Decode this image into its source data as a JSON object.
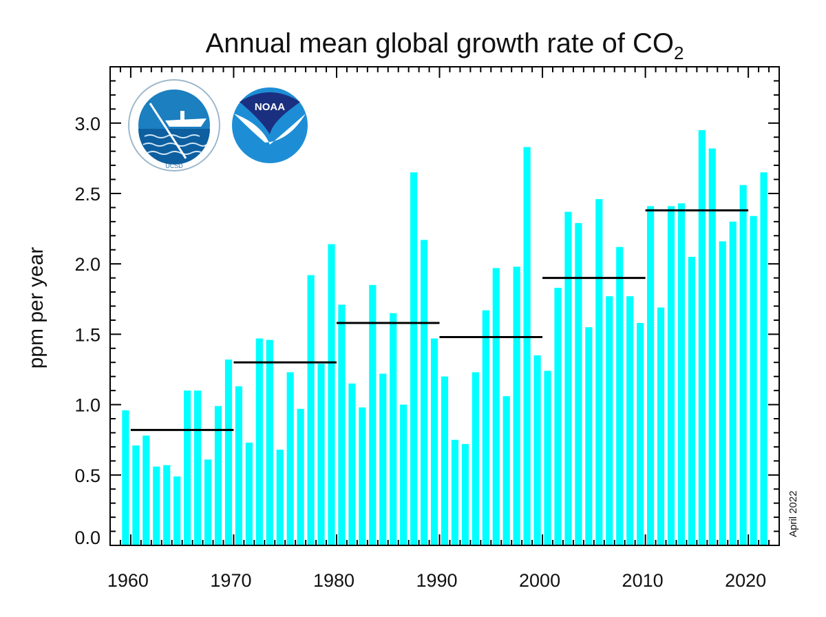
{
  "chart_data": {
    "type": "bar",
    "title": "Annual mean global growth rate of CO",
    "title_subscript": "2",
    "ylabel": "ppm per year",
    "xlabel": "",
    "annotation": "April 2022",
    "logos": [
      "SCRIPPS INSTITUTION OF OCEANOGRAPHY UCSD",
      "NOAA"
    ],
    "xlim": [
      1958,
      2023
    ],
    "ylim": [
      0,
      3.4
    ],
    "x_ticks": [
      "1960",
      "1970",
      "1980",
      "1990",
      "2000",
      "2010",
      "2020"
    ],
    "y_ticks": [
      "0.0",
      "0.5",
      "1.0",
      "1.5",
      "2.0",
      "2.5",
      "3.0"
    ],
    "grid": false,
    "bar_color": "#00FFFF",
    "years": [
      1959,
      1960,
      1961,
      1962,
      1963,
      1964,
      1965,
      1966,
      1967,
      1968,
      1969,
      1970,
      1971,
      1972,
      1973,
      1974,
      1975,
      1976,
      1977,
      1978,
      1979,
      1980,
      1981,
      1982,
      1983,
      1984,
      1985,
      1986,
      1987,
      1988,
      1989,
      1990,
      1991,
      1992,
      1993,
      1994,
      1995,
      1996,
      1997,
      1998,
      1999,
      2000,
      2001,
      2002,
      2003,
      2004,
      2005,
      2006,
      2007,
      2008,
      2009,
      2010,
      2011,
      2012,
      2013,
      2014,
      2015,
      2016,
      2017,
      2018,
      2019,
      2020,
      2021
    ],
    "values": [
      0.96,
      0.71,
      0.78,
      0.56,
      0.57,
      0.49,
      1.1,
      1.1,
      0.61,
      0.99,
      1.32,
      1.13,
      0.73,
      1.47,
      1.46,
      0.68,
      1.23,
      0.97,
      1.92,
      1.29,
      2.14,
      1.71,
      1.15,
      0.98,
      1.85,
      1.22,
      1.65,
      1.0,
      2.65,
      2.17,
      1.47,
      1.2,
      0.75,
      0.72,
      1.23,
      1.67,
      1.97,
      1.06,
      1.98,
      2.83,
      1.35,
      1.24,
      1.83,
      2.37,
      2.29,
      1.55,
      2.46,
      1.77,
      2.12,
      1.77,
      1.58,
      2.41,
      1.69,
      2.41,
      2.43,
      2.05,
      2.95,
      2.82,
      2.16,
      2.3,
      2.56,
      2.34,
      2.65
    ],
    "decade_means": [
      {
        "start": 1960,
        "end": 1970,
        "value": 0.82
      },
      {
        "start": 1970,
        "end": 1980,
        "value": 1.3
      },
      {
        "start": 1980,
        "end": 1990,
        "value": 1.58
      },
      {
        "start": 1990,
        "end": 2000,
        "value": 1.48
      },
      {
        "start": 2000,
        "end": 2010,
        "value": 1.9
      },
      {
        "start": 2010,
        "end": 2020,
        "value": 2.38
      }
    ],
    "decade_line_color": "#000000"
  }
}
